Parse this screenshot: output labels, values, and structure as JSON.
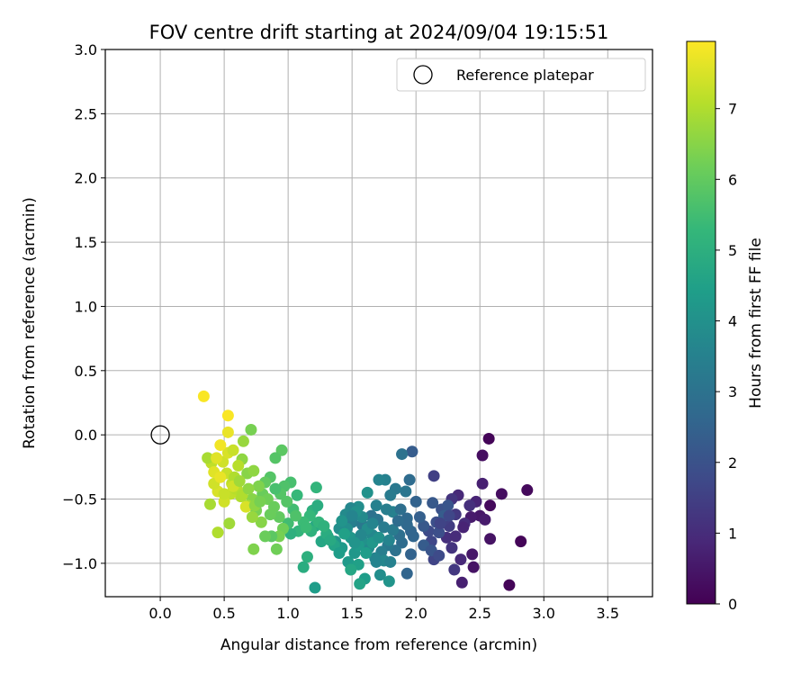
{
  "chart_data": {
    "type": "scatter",
    "title": "FOV centre drift starting at 2024/09/04 19:15:51",
    "xlabel": "Angular distance from reference (arcmin)",
    "ylabel": "Rotation from reference (arcmin)",
    "xlim": [
      -0.43,
      3.85
    ],
    "ylim": [
      -1.26,
      3.0
    ],
    "xticks": [
      0.0,
      0.5,
      1.0,
      1.5,
      2.0,
      2.5,
      3.0,
      3.5
    ],
    "xtick_labels": [
      "0.0",
      "0.5",
      "1.0",
      "1.5",
      "2.0",
      "2.5",
      "3.0",
      "3.5"
    ],
    "yticks": [
      -1.0,
      -0.5,
      0.0,
      0.5,
      1.0,
      1.5,
      2.0,
      2.5,
      3.0
    ],
    "ytick_labels": [
      "−1.0",
      "−0.5",
      "0.0",
      "0.5",
      "1.0",
      "1.5",
      "2.0",
      "2.5",
      "3.0"
    ],
    "grid": true,
    "legend": {
      "location": "upper right",
      "entries": [
        "Reference platepar"
      ]
    },
    "reference_point": {
      "x": 0.0,
      "y": 0.0,
      "marker": "open-circle"
    },
    "colorbar": {
      "label": "Hours from first FF file",
      "colormap": "viridis",
      "range": [
        0,
        7.95
      ],
      "ticks": [
        0,
        1,
        2,
        3,
        4,
        5,
        6,
        7
      ],
      "tick_labels": [
        "0",
        "1",
        "2",
        "3",
        "4",
        "5",
        "6",
        "7"
      ]
    },
    "colormap_stops": [
      "#440154",
      "#482878",
      "#3e4a89",
      "#31688e",
      "#26828e",
      "#1f9e89",
      "#35b779",
      "#6ece58",
      "#b5de2b",
      "#fde725"
    ],
    "points": [
      [
        2.57,
        -0.03,
        0.1
      ],
      [
        2.52,
        -0.16,
        0.3
      ],
      [
        2.82,
        -0.83,
        0.1
      ],
      [
        2.87,
        -0.43,
        0.2
      ],
      [
        2.73,
        -1.17,
        0.1
      ],
      [
        2.67,
        -0.46,
        0.3
      ],
      [
        2.58,
        -0.55,
        0.2
      ],
      [
        2.58,
        -0.81,
        0.4
      ],
      [
        2.5,
        -0.63,
        0.5
      ],
      [
        2.54,
        -0.66,
        0.6
      ],
      [
        2.52,
        -0.38,
        0.7
      ],
      [
        2.47,
        -0.52,
        0.8
      ],
      [
        2.43,
        -0.64,
        0.6
      ],
      [
        2.44,
        -0.93,
        0.5
      ],
      [
        2.45,
        -1.03,
        0.4
      ],
      [
        2.36,
        -1.15,
        0.7
      ],
      [
        2.35,
        -0.97,
        0.9
      ],
      [
        2.38,
        -0.69,
        1.0
      ],
      [
        2.42,
        -0.55,
        1.1
      ],
      [
        2.33,
        -0.47,
        0.9
      ],
      [
        2.28,
        -0.5,
        1.2
      ],
      [
        2.31,
        -0.62,
        1.3
      ],
      [
        2.26,
        -0.71,
        1.4
      ],
      [
        2.22,
        -0.66,
        1.5
      ],
      [
        2.24,
        -0.8,
        1.1
      ],
      [
        2.3,
        -1.05,
        1.3
      ],
      [
        2.14,
        -0.97,
        1.6
      ],
      [
        2.12,
        -0.83,
        1.7
      ],
      [
        2.1,
        -0.75,
        1.8
      ],
      [
        2.16,
        -0.68,
        1.9
      ],
      [
        2.2,
        -0.58,
        2.0
      ],
      [
        2.25,
        -0.55,
        2.1
      ],
      [
        2.13,
        -0.53,
        2.2
      ],
      [
        2.14,
        -0.32,
        1.5
      ],
      [
        2.22,
        -0.63,
        2.3
      ],
      [
        2.31,
        -0.79,
        1.0
      ],
      [
        2.37,
        -0.72,
        0.8
      ],
      [
        2.28,
        -0.88,
        1.2
      ],
      [
        2.06,
        -0.71,
        2.2
      ],
      [
        2.03,
        -0.64,
        2.4
      ],
      [
        2.0,
        -0.52,
        2.5
      ],
      [
        1.97,
        -0.13,
        2.3
      ],
      [
        1.89,
        -0.15,
        3.0
      ],
      [
        1.95,
        -0.35,
        2.8
      ],
      [
        1.92,
        -0.44,
        3.1
      ],
      [
        1.84,
        -0.42,
        3.2
      ],
      [
        1.8,
        -0.47,
        3.3
      ],
      [
        1.76,
        -0.35,
        3.5
      ],
      [
        1.71,
        -0.35,
        3.6
      ],
      [
        1.62,
        -0.45,
        4.0
      ],
      [
        1.55,
        -0.56,
        3.9
      ],
      [
        1.49,
        -0.57,
        3.7
      ],
      [
        1.45,
        -0.62,
        3.8
      ],
      [
        1.5,
        -0.68,
        3.4
      ],
      [
        1.58,
        -0.7,
        3.2
      ],
      [
        1.65,
        -0.63,
        3.0
      ],
      [
        1.7,
        -0.66,
        3.1
      ],
      [
        1.75,
        -0.72,
        3.3
      ],
      [
        1.82,
        -0.6,
        3.5
      ],
      [
        1.88,
        -0.58,
        2.9
      ],
      [
        1.93,
        -0.65,
        2.7
      ],
      [
        1.96,
        -0.75,
        2.6
      ],
      [
        1.89,
        -0.84,
        2.8
      ],
      [
        1.84,
        -0.9,
        3.0
      ],
      [
        1.78,
        -0.86,
        3.2
      ],
      [
        1.73,
        -0.91,
        3.4
      ],
      [
        1.68,
        -0.96,
        3.6
      ],
      [
        1.63,
        -0.88,
        3.8
      ],
      [
        1.58,
        -0.82,
        4.0
      ],
      [
        1.52,
        -0.92,
        4.2
      ],
      [
        1.47,
        -0.99,
        4.3
      ],
      [
        1.55,
        -1.01,
        4.5
      ],
      [
        1.6,
        -1.12,
        4.4
      ],
      [
        1.72,
        -1.09,
        3.9
      ],
      [
        1.79,
        -1.14,
        4.1
      ],
      [
        1.93,
        -1.08,
        2.6
      ],
      [
        1.96,
        -0.93,
        2.5
      ],
      [
        1.87,
        -0.78,
        2.9
      ],
      [
        1.82,
        -0.74,
        3.3
      ],
      [
        1.66,
        -0.78,
        3.7
      ],
      [
        1.62,
        -0.73,
        3.9
      ],
      [
        1.4,
        -0.73,
        3.9
      ],
      [
        1.37,
        -0.83,
        4.1
      ],
      [
        1.42,
        -0.88,
        4.3
      ],
      [
        1.36,
        -0.86,
        4.6
      ],
      [
        1.31,
        -0.79,
        4.5
      ],
      [
        1.26,
        -0.83,
        4.7
      ],
      [
        1.21,
        -0.71,
        4.8
      ],
      [
        1.15,
        -0.95,
        5.0
      ],
      [
        1.12,
        -1.03,
        4.9
      ],
      [
        1.21,
        -1.19,
        4.4
      ],
      [
        1.56,
        -1.16,
        4.6
      ],
      [
        1.75,
        -0.98,
        3.7
      ],
      [
        1.8,
        -0.99,
        3.5
      ],
      [
        1.69,
        -0.99,
        3.6
      ],
      [
        2.06,
        -0.86,
        2.3
      ],
      [
        2.12,
        -0.9,
        2.1
      ],
      [
        2.18,
        -0.94,
        1.8
      ],
      [
        2.18,
        -0.76,
        1.9
      ],
      [
        2.26,
        -0.63,
        1.7
      ],
      [
        2.19,
        -0.69,
        1.6
      ],
      [
        1.98,
        -0.79,
        2.6
      ],
      [
        1.93,
        -0.7,
        2.7
      ],
      [
        1.86,
        -0.67,
        2.8
      ],
      [
        1.77,
        -0.58,
        3.4
      ],
      [
        1.69,
        -0.55,
        3.5
      ],
      [
        1.66,
        -0.69,
        3.6
      ],
      [
        1.58,
        -0.64,
        3.8
      ],
      [
        1.53,
        -0.6,
        4.0
      ],
      [
        1.46,
        -0.73,
        3.9
      ],
      [
        1.42,
        -0.67,
        4.1
      ],
      [
        1.49,
        -0.8,
        4.2
      ],
      [
        1.55,
        -0.86,
        4.3
      ],
      [
        1.61,
        -0.92,
        4.4
      ],
      [
        1.66,
        -0.84,
        4.2
      ],
      [
        1.71,
        -0.8,
        4.0
      ],
      [
        1.79,
        -0.82,
        3.6
      ],
      [
        1.57,
        -0.78,
        3.7
      ],
      [
        1.5,
        -0.63,
        3.6
      ],
      [
        1.52,
        -0.84,
        4.1
      ],
      [
        1.22,
        -0.41,
        5.2
      ],
      [
        1.19,
        -0.59,
        5.0
      ],
      [
        1.23,
        -0.55,
        4.9
      ],
      [
        1.17,
        -0.63,
        5.3
      ],
      [
        1.12,
        -0.68,
        5.4
      ],
      [
        1.18,
        -0.75,
        5.1
      ],
      [
        1.24,
        -0.68,
        5.2
      ],
      [
        1.3,
        -0.77,
        4.9
      ],
      [
        1.08,
        -0.75,
        5.2
      ],
      [
        1.02,
        -0.77,
        5.0
      ],
      [
        1.0,
        -0.69,
        5.5
      ],
      [
        1.04,
        -0.58,
        5.5
      ],
      [
        1.07,
        -0.47,
        5.3
      ],
      [
        1.02,
        -0.37,
        5.6
      ],
      [
        0.97,
        -0.4,
        5.7
      ],
      [
        0.94,
        -0.46,
        5.8
      ],
      [
        0.9,
        -0.42,
        5.6
      ],
      [
        0.86,
        -0.33,
        5.8
      ],
      [
        0.82,
        -0.37,
        6.0
      ],
      [
        0.8,
        -0.46,
        6.1
      ],
      [
        0.84,
        -0.5,
        6.2
      ],
      [
        0.89,
        -0.56,
        6.1
      ],
      [
        0.93,
        -0.64,
        6.0
      ],
      [
        0.96,
        -0.73,
        6.2
      ],
      [
        0.93,
        -0.79,
        6.3
      ],
      [
        0.87,
        -0.79,
        5.9
      ],
      [
        0.82,
        -0.79,
        6.1
      ],
      [
        0.73,
        -0.89,
        6.4
      ],
      [
        0.91,
        -0.89,
        6.2
      ],
      [
        0.95,
        -0.12,
        5.9
      ],
      [
        0.9,
        -0.18,
        5.8
      ],
      [
        0.71,
        0.04,
        6.3
      ],
      [
        0.65,
        -0.05,
        6.7
      ],
      [
        0.64,
        -0.19,
        6.6
      ],
      [
        0.68,
        -0.3,
        6.5
      ],
      [
        0.73,
        -0.28,
        6.6
      ],
      [
        0.77,
        -0.4,
        6.4
      ],
      [
        0.72,
        -0.5,
        6.5
      ],
      [
        0.75,
        -0.59,
        6.3
      ],
      [
        0.79,
        -0.68,
        6.5
      ],
      [
        0.72,
        -0.64,
        6.7
      ],
      [
        0.68,
        -0.55,
        6.9
      ],
      [
        0.63,
        -0.48,
        7.0
      ],
      [
        0.6,
        -0.42,
        7.1
      ],
      [
        0.56,
        -0.38,
        7.2
      ],
      [
        0.52,
        -0.3,
        7.3
      ],
      [
        0.49,
        -0.21,
        7.4
      ],
      [
        0.53,
        -0.14,
        7.5
      ],
      [
        0.57,
        -0.12,
        7.3
      ],
      [
        0.61,
        -0.24,
        7.1
      ],
      [
        0.58,
        -0.33,
        7.0
      ],
      [
        0.55,
        -0.46,
        7.2
      ],
      [
        0.5,
        -0.52,
        7.4
      ],
      [
        0.45,
        -0.44,
        7.5
      ],
      [
        0.42,
        -0.38,
        7.4
      ],
      [
        0.4,
        -0.22,
        7.2
      ],
      [
        0.37,
        -0.18,
        6.9
      ],
      [
        0.44,
        -0.18,
        7.6
      ],
      [
        0.47,
        -0.08,
        7.8
      ],
      [
        0.53,
        0.02,
        7.7
      ],
      [
        0.53,
        0.15,
        7.9
      ],
      [
        0.34,
        0.3,
        7.9
      ],
      [
        0.42,
        -0.29,
        7.6
      ],
      [
        0.47,
        -0.33,
        7.7
      ],
      [
        0.59,
        -0.42,
        7.1
      ],
      [
        0.64,
        -0.47,
        7.0
      ],
      [
        0.67,
        -0.56,
        7.5
      ],
      [
        0.54,
        -0.69,
        6.8
      ],
      [
        0.45,
        -0.76,
        7.0
      ],
      [
        0.39,
        -0.54,
        6.9
      ],
      [
        0.5,
        -0.46,
        7.3
      ],
      [
        0.57,
        -0.4,
        7.4
      ],
      [
        0.62,
        -0.36,
        6.8
      ],
      [
        0.69,
        -0.42,
        6.6
      ],
      [
        0.74,
        -0.55,
        6.6
      ],
      [
        0.78,
        -0.52,
        6.3
      ],
      [
        0.86,
        -0.62,
        6.1
      ],
      [
        0.99,
        -0.52,
        5.8
      ],
      [
        1.06,
        -0.63,
        5.7
      ],
      [
        1.14,
        -0.72,
        5.4
      ],
      [
        1.28,
        -0.71,
        5.1
      ],
      [
        1.33,
        -0.82,
        4.8
      ],
      [
        1.44,
        -0.77,
        4.5
      ],
      [
        1.4,
        -0.92,
        4.4
      ],
      [
        1.49,
        -1.05,
        4.7
      ]
    ]
  }
}
